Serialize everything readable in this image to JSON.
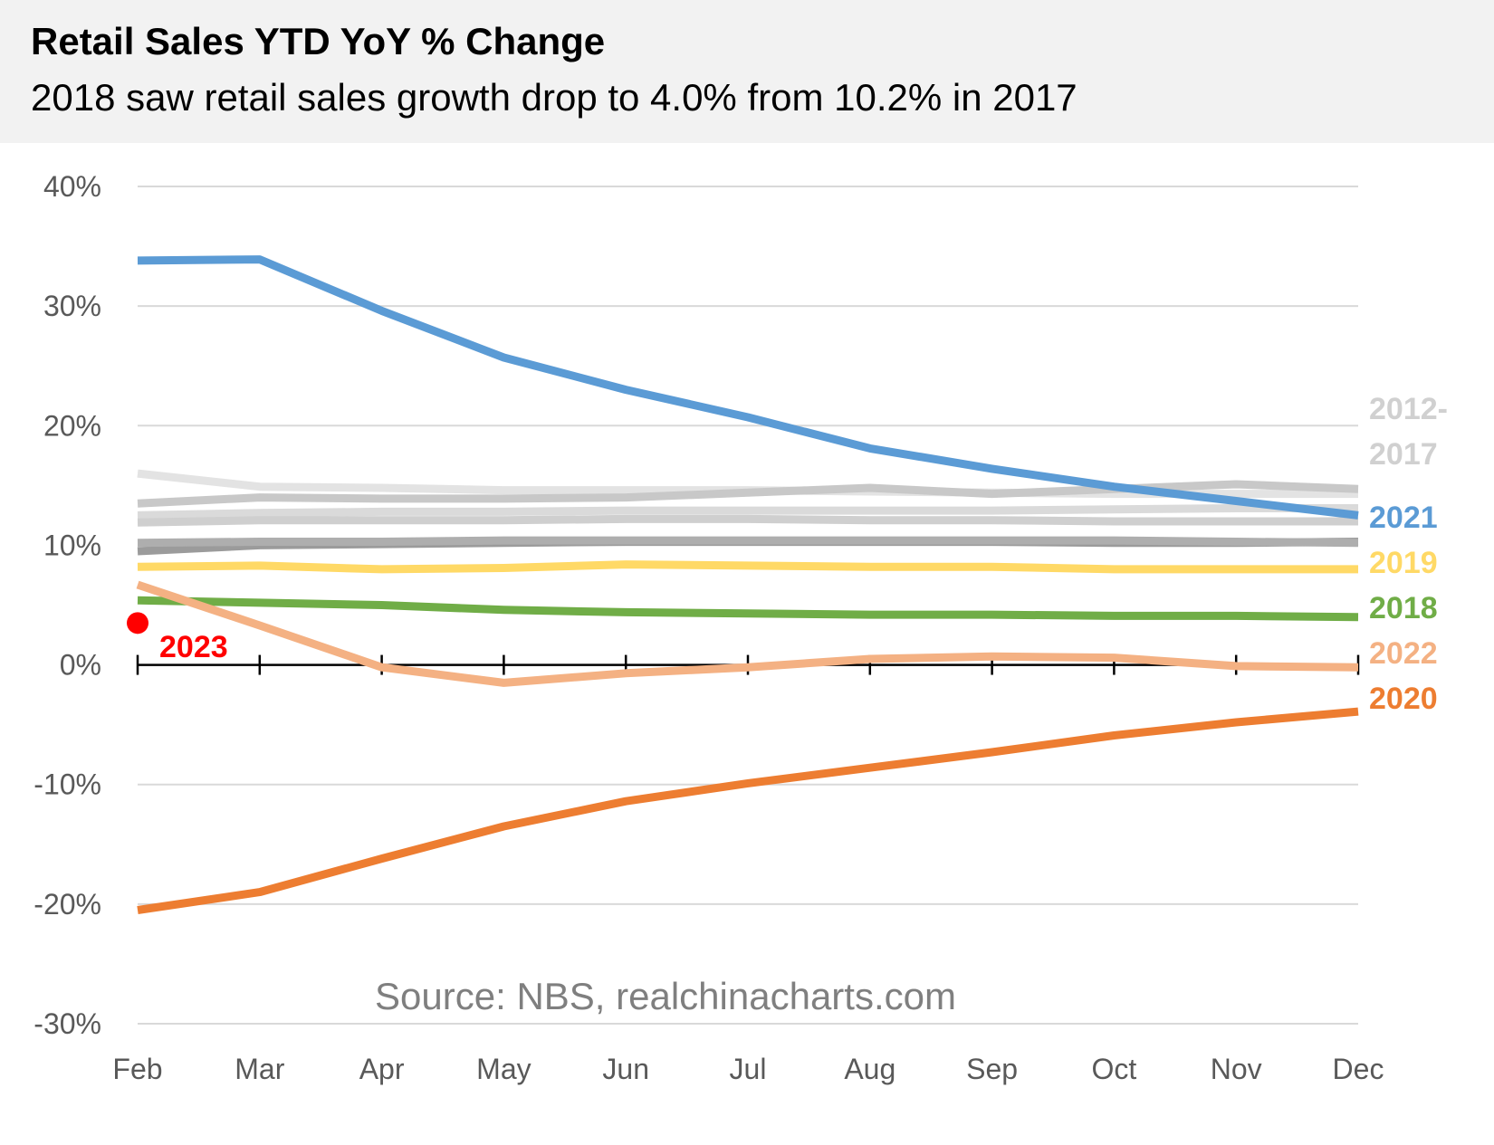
{
  "header": {
    "title": "Retail Sales YTD YoY % Change",
    "subtitle": "2018 saw retail sales growth drop to 4.0% from 10.2% in 2017"
  },
  "source": "Source: NBS, realchinacharts.com",
  "chart_data": {
    "type": "line",
    "title": "Retail Sales YTD YoY % Change",
    "subtitle": "2018 saw retail sales growth drop to 4.0% from 10.2% in 2017",
    "xlabel": "",
    "ylabel": "",
    "categories": [
      "Feb",
      "Mar",
      "Apr",
      "May",
      "Jun",
      "Jul",
      "Aug",
      "Sep",
      "Oct",
      "Nov",
      "Dec"
    ],
    "ylim": [
      -30,
      40
    ],
    "yticks": [
      40,
      30,
      20,
      10,
      0,
      -10,
      -20,
      -30
    ],
    "ytick_labels": [
      "40%",
      "30%",
      "20%",
      "10%",
      "0%",
      "-10%",
      "-20%",
      "-30%"
    ],
    "grid": true,
    "series": [
      {
        "label": "",
        "color": "#e3e3e3",
        "values": [
          16.0,
          14.9,
          14.8,
          14.6,
          14.6,
          14.6,
          14.5,
          14.4,
          14.3,
          14.3,
          14.3
        ]
      },
      {
        "label": "",
        "color": "#c8c8c8",
        "values": [
          13.5,
          14.0,
          13.9,
          13.9,
          14.0,
          14.4,
          14.8,
          14.3,
          14.7,
          15.1,
          14.7
        ]
      },
      {
        "label": "",
        "color": "#dadada",
        "values": [
          12.5,
          12.7,
          12.8,
          12.8,
          12.9,
          12.9,
          12.9,
          12.9,
          13.0,
          13.1,
          13.1
        ]
      },
      {
        "label": "",
        "color": "#cfcfcf",
        "values": [
          11.9,
          12.1,
          12.1,
          12.1,
          12.2,
          12.2,
          12.1,
          12.1,
          12.0,
          12.0,
          12.0
        ]
      },
      {
        "label": "",
        "color": "#9b9b9b",
        "values": [
          9.5,
          10.0,
          10.1,
          10.2,
          10.3,
          10.3,
          10.3,
          10.3,
          10.2,
          10.2,
          10.3
        ]
      },
      {
        "label": "",
        "color": "#aeaeae",
        "values": [
          10.2,
          10.3,
          10.3,
          10.4,
          10.4,
          10.4,
          10.4,
          10.4,
          10.4,
          10.3,
          10.2
        ]
      },
      {
        "label": "2021",
        "color": "#5b9bd5",
        "values": [
          33.8,
          33.9,
          29.6,
          25.7,
          23.0,
          20.7,
          18.1,
          16.4,
          14.9,
          13.7,
          12.5
        ]
      },
      {
        "label": "2019",
        "color": "#ffd966",
        "values": [
          8.2,
          8.3,
          8.0,
          8.1,
          8.4,
          8.3,
          8.2,
          8.2,
          8.0,
          8.0,
          8.0
        ]
      },
      {
        "label": "2018",
        "color": "#70ad47",
        "values": [
          5.4,
          5.2,
          5.0,
          4.6,
          4.4,
          4.3,
          4.2,
          4.2,
          4.1,
          4.1,
          4.0
        ]
      },
      {
        "label": "2022",
        "color": "#f4b183",
        "values": [
          6.7,
          3.3,
          -0.2,
          -1.5,
          -0.7,
          -0.2,
          0.5,
          0.7,
          0.6,
          -0.1,
          -0.2
        ]
      },
      {
        "label": "2020",
        "color": "#ed7d31",
        "values": [
          -20.5,
          -19.0,
          -16.2,
          -13.5,
          -11.4,
          -9.9,
          -8.6,
          -7.3,
          -5.9,
          -4.8,
          -3.9
        ]
      }
    ],
    "point_2023": {
      "label": "2023",
      "x": "Feb",
      "y": 3.5,
      "color": "#ff0000"
    },
    "label_2012_2017": {
      "line1": "2012-",
      "line2": "2017",
      "color": "#d0d0d0"
    }
  }
}
